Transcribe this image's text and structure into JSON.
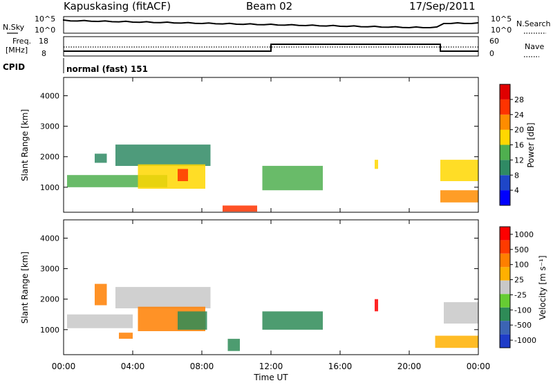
{
  "header": {
    "station": "Kapuskasing (fitACF)",
    "beam": "Beam 02",
    "date": "17/Sep/2011"
  },
  "strips": {
    "left_top_label": "N.Sky",
    "left_top_ticks": [
      "10^5",
      "10^0"
    ],
    "right_top_label": "N.Search",
    "right_top_ticks": [
      "10^5",
      "10^0"
    ],
    "left_mid_label": "Freq.",
    "left_mid_unit": "[MHz]",
    "left_mid_ticks": [
      "18",
      "8"
    ],
    "right_mid_label": "Nave",
    "right_mid_ticks": [
      "60",
      "0"
    ],
    "cpid_label": "CPID",
    "cpid_value": "normal (fast) 151",
    "freq_step_hours": [
      0,
      12,
      21.8,
      24
    ],
    "freq_levels": [
      "low",
      "high",
      "low"
    ]
  },
  "chart_data": [
    {
      "type": "heatmap",
      "title": "",
      "ylabel": "Slant Range [km]",
      "yticks": [
        "1000",
        "2000",
        "3000",
        "4000"
      ],
      "ylim": [
        180,
        4600
      ],
      "xlim": [
        0,
        24
      ],
      "colorbar": {
        "label": "Power [dB]",
        "ticks": [
          "4",
          "8",
          "12",
          "16",
          "20",
          "24",
          "28"
        ],
        "colors": [
          "#0000ff",
          "#1e46c8",
          "#2f8a64",
          "#4faf4f",
          "#ffd700",
          "#ff8c00",
          "#ff3300",
          "#e00000"
        ]
      },
      "echo_regions": [
        {
          "x": [
            0.2,
            6.0
          ],
          "y": [
            1000,
            1400
          ],
          "level": 3
        },
        {
          "x": [
            3.0,
            8.5
          ],
          "y": [
            1700,
            2400
          ],
          "level": 2
        },
        {
          "x": [
            4.3,
            8.2
          ],
          "y": [
            950,
            1750
          ],
          "level": 4
        },
        {
          "x": [
            6.6,
            7.2
          ],
          "y": [
            1200,
            1600
          ],
          "level": 6
        },
        {
          "x": [
            1.8,
            2.5
          ],
          "y": [
            1800,
            2100
          ],
          "level": 2
        },
        {
          "x": [
            9.2,
            11.2
          ],
          "y": [
            200,
            400
          ],
          "level": 6
        },
        {
          "x": [
            11.5,
            15.0
          ],
          "y": [
            900,
            1700
          ],
          "level": 3
        },
        {
          "x": [
            18.0,
            18.2
          ],
          "y": [
            1600,
            1900
          ],
          "level": 4
        },
        {
          "x": [
            21.8,
            24.0
          ],
          "y": [
            1200,
            1900
          ],
          "level": 4
        },
        {
          "x": [
            21.8,
            24.0
          ],
          "y": [
            500,
            900
          ],
          "level": 5
        }
      ]
    },
    {
      "type": "heatmap",
      "title": "",
      "ylabel": "Slant Range [km]",
      "yticks": [
        "1000",
        "2000",
        "3000",
        "4000"
      ],
      "ylim": [
        180,
        4600
      ],
      "xlim": [
        0,
        24
      ],
      "xlabel": "Time UT",
      "xticks": [
        "00:00",
        "04:00",
        "08:00",
        "12:00",
        "16:00",
        "20:00",
        "00:00"
      ],
      "colorbar": {
        "label": "Velocity [m s⁻¹]",
        "ticks": [
          "1000",
          "500",
          "100",
          "25",
          "-25",
          "-100",
          "-500",
          "-1000"
        ],
        "colors": [
          "#1e3cc8",
          "#3c64b4",
          "#2e8b57",
          "#66cc33",
          "#c8c8c8",
          "#ffb000",
          "#ff7f00",
          "#ff3a00",
          "#ff0000"
        ]
      },
      "echo_regions": [
        {
          "x": [
            0.2,
            4.0
          ],
          "y": [
            1050,
            1500
          ],
          "level": 4
        },
        {
          "x": [
            3.0,
            8.5
          ],
          "y": [
            1700,
            2400
          ],
          "level": 4
        },
        {
          "x": [
            4.3,
            8.2
          ],
          "y": [
            950,
            1750
          ],
          "level": 6
        },
        {
          "x": [
            6.6,
            8.3
          ],
          "y": [
            1000,
            1600
          ],
          "level": 2
        },
        {
          "x": [
            1.8,
            2.5
          ],
          "y": [
            1800,
            2500
          ],
          "level": 6
        },
        {
          "x": [
            3.2,
            4.0
          ],
          "y": [
            700,
            900
          ],
          "level": 6
        },
        {
          "x": [
            9.5,
            10.2
          ],
          "y": [
            300,
            700
          ],
          "level": 2
        },
        {
          "x": [
            11.5,
            15.0
          ],
          "y": [
            1000,
            1600
          ],
          "level": 2
        },
        {
          "x": [
            18.0,
            18.2
          ],
          "y": [
            1600,
            2000
          ],
          "level": 8
        },
        {
          "x": [
            22.0,
            24.0
          ],
          "y": [
            1200,
            1900
          ],
          "level": 4
        },
        {
          "x": [
            21.5,
            24.0
          ],
          "y": [
            400,
            800
          ],
          "level": 5
        }
      ]
    }
  ]
}
